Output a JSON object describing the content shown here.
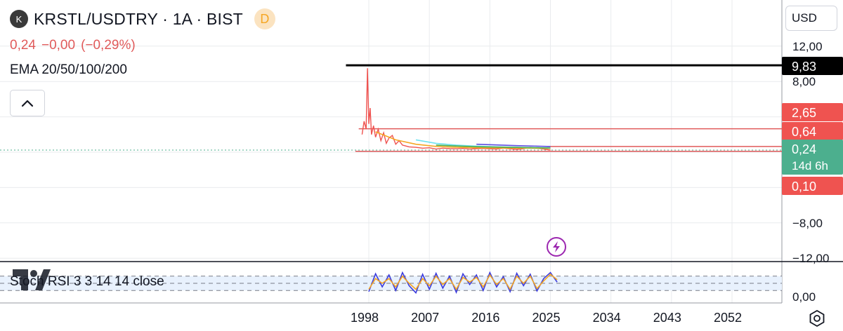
{
  "header": {
    "logo_letter": "K",
    "symbol_title": "KRSTL/USDTRY · 1A · BIST",
    "badge": "D"
  },
  "quote": {
    "last": "0,24",
    "change": "−0,00",
    "change_pct": "(−0,29%)"
  },
  "indicators": {
    "ema_label": "EMA 20/50/100/200",
    "stoch_label": "Stoch RSI 3 3 14 14 close"
  },
  "currency": "USD",
  "colors": {
    "black_line": "#000000",
    "red_line": "#e05a5a",
    "price_green": "#4caf8e",
    "price_line": "#ef5350",
    "ema_orange": "#f5a623",
    "ema_cyan": "#6fe3f0",
    "ema_purple": "#5b4de0",
    "ema_green": "#4caf50",
    "stoch_k": "#3b3bdc",
    "stoch_d": "#f5a623",
    "event_purple": "#9c27b0",
    "grid": "#e9ebee",
    "stoch_bg": "#e8f1fd"
  },
  "event_icon": "lightning-icon",
  "chart_data": [
    {
      "type": "line",
      "scale": "linear",
      "ylim": [
        -12,
        12
      ],
      "y_ticks": [
        "12,00",
        "8,00",
        "−8,00"
      ],
      "x_ticks": [
        "1998",
        "2007",
        "2016",
        "2025",
        "2034",
        "2043",
        "2052"
      ],
      "x_tick_years": [
        1998,
        2007,
        2016,
        2025,
        2034,
        2043,
        2052
      ],
      "price_labels": [
        {
          "text": "9,83",
          "value": 9.83,
          "style": "black"
        },
        {
          "text": "2,65",
          "value": 2.65,
          "style": "red"
        },
        {
          "text": "0,64",
          "value": 0.64,
          "style": "red"
        },
        {
          "text": "0,24",
          "value": 0.24,
          "style": "green",
          "sub": "14d 6h"
        },
        {
          "text": "0,10",
          "value": 0.1,
          "style": "red"
        }
      ],
      "horizontal_lines": [
        {
          "value": 9.83,
          "from_year": 1994.6,
          "color": "black"
        },
        {
          "value": 2.65,
          "from_year": 1996.5,
          "color": "red"
        },
        {
          "value": 0.64,
          "from_year": 2024.5,
          "color": "red"
        },
        {
          "value": 0.1,
          "from_year": 1996.0,
          "color": "red"
        }
      ],
      "series": [
        {
          "x": [
            1997.0,
            1997.3,
            1997.6,
            1997.8,
            1998.0,
            1998.2,
            1998.4,
            1998.7,
            1999.0,
            1999.4,
            1999.8,
            2000.2,
            2000.6,
            2001.0,
            2001.5,
            2002.0,
            2002.5,
            2003.0,
            2003.5,
            2004.0,
            2005.0,
            2006.0,
            2007.0,
            2008.0,
            2009.0,
            2010.0,
            2011.0,
            2012.0,
            2013.0,
            2014.0,
            2015.0,
            2016.0,
            2017.0,
            2018.0,
            2019.0,
            2020.0,
            2021.0,
            2022.0,
            2023.0,
            2024.0,
            2025.0
          ],
          "y": [
            2.0,
            3.5,
            2.6,
            9.5,
            3.2,
            5.0,
            2.0,
            3.0,
            1.7,
            2.6,
            1.3,
            2.2,
            1.0,
            1.6,
            1.9,
            0.9,
            1.3,
            0.8,
            0.7,
            0.6,
            0.55,
            0.45,
            0.5,
            0.35,
            0.45,
            0.4,
            0.38,
            0.42,
            0.35,
            0.4,
            0.42,
            0.38,
            0.36,
            0.45,
            0.38,
            0.32,
            0.4,
            0.55,
            0.45,
            0.35,
            0.24
          ]
        },
        {
          "name": "EMA 20",
          "x": [
            1999.0,
            2002.0,
            2005.0,
            2008.0,
            2011.0,
            2014.0,
            2017.0,
            2020.0,
            2023.0,
            2025.0
          ],
          "y": [
            2.3,
            1.4,
            0.9,
            0.65,
            0.55,
            0.5,
            0.48,
            0.46,
            0.44,
            0.42
          ]
        },
        {
          "name": "EMA 50",
          "x": [
            2005.0,
            2008.0,
            2011.0,
            2014.0,
            2017.0,
            2020.0,
            2023.0,
            2025.0
          ],
          "y": [
            1.4,
            1.0,
            0.8,
            0.68,
            0.6,
            0.55,
            0.5,
            0.47
          ]
        },
        {
          "name": "EMA 100",
          "x": [
            2014.0,
            2017.0,
            2020.0,
            2023.0,
            2025.0
          ],
          "y": [
            0.9,
            0.82,
            0.74,
            0.68,
            0.64
          ]
        },
        {
          "name": "EMA 200",
          "x": [
            2008.0,
            2011.0,
            2014.0,
            2017.0,
            2020.0,
            2023.0,
            2025.0
          ],
          "y": [
            0.8,
            0.7,
            0.62,
            0.58,
            0.54,
            0.5,
            0.48
          ]
        }
      ]
    },
    {
      "type": "line",
      "ylim": [
        0,
        100
      ],
      "y_ticks": [
        "0,00"
      ],
      "band": [
        20,
        80
      ],
      "series": [
        {
          "name": "K",
          "x": [
            1998,
            1999,
            2000,
            2001,
            2002,
            2003,
            2004,
            2005,
            2006,
            2007,
            2008,
            2009,
            2010,
            2011,
            2012,
            2013,
            2014,
            2015,
            2016,
            2017,
            2018,
            2019,
            2020,
            2021,
            2022,
            2023,
            2024,
            2025,
            2026
          ],
          "y": [
            15,
            90,
            35,
            85,
            20,
            95,
            40,
            10,
            88,
            25,
            92,
            30,
            80,
            12,
            90,
            45,
            85,
            20,
            95,
            35,
            78,
            15,
            92,
            40,
            88,
            18,
            70,
            95,
            55
          ]
        },
        {
          "name": "D",
          "x": [
            1998,
            1999,
            2000,
            2001,
            2002,
            2003,
            2004,
            2005,
            2006,
            2007,
            2008,
            2009,
            2010,
            2011,
            2012,
            2013,
            2014,
            2015,
            2016,
            2017,
            2018,
            2019,
            2020,
            2021,
            2022,
            2023,
            2024,
            2025,
            2026
          ],
          "y": [
            25,
            70,
            50,
            70,
            35,
            80,
            50,
            25,
            70,
            40,
            80,
            45,
            70,
            25,
            75,
            55,
            75,
            35,
            85,
            45,
            70,
            25,
            80,
            50,
            80,
            28,
            60,
            88,
            65
          ]
        }
      ]
    }
  ]
}
